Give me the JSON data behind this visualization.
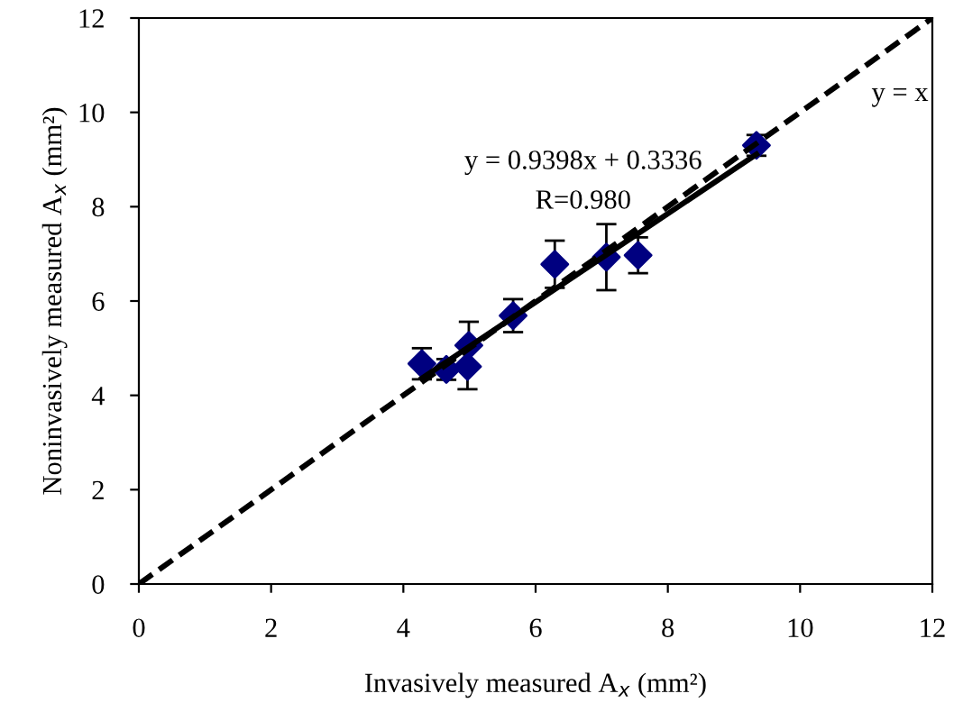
{
  "chart_data": {
    "type": "scatter",
    "xlabel": "Invasively measured A$_{x}$ (mm²)",
    "ylabel": "Noninvasively measured A$_{x}$ (mm²)",
    "xlim": [
      0,
      12
    ],
    "ylim": [
      0,
      12
    ],
    "xticks": [
      0,
      2,
      4,
      6,
      8,
      10,
      12
    ],
    "yticks": [
      0,
      2,
      4,
      6,
      8,
      10,
      12
    ],
    "grid": false,
    "legend": false,
    "series": [
      {
        "color": "#000080",
        "marker": "diamond",
        "x": [
          4.28,
          4.65,
          4.97,
          4.99,
          5.66,
          6.29,
          7.07,
          7.55,
          9.34
        ],
        "values": [
          4.67,
          4.55,
          4.61,
          5.06,
          5.69,
          6.78,
          6.93,
          6.97,
          9.3
        ],
        "errors": [
          0.33,
          0.22,
          0.48,
          0.5,
          0.35,
          0.5,
          0.7,
          0.38,
          0.22
        ]
      },
      {
        "type": "line",
        "color": "#000000",
        "line_style": "solid",
        "marker": "none",
        "x": [
          4.28,
          9.34
        ],
        "values": [
          4.36,
          9.11
        ]
      },
      {
        "type": "line",
        "color": "#000000",
        "line_style": "dashed",
        "marker": "none",
        "x": [
          0,
          12
        ],
        "values": [
          0,
          12
        ]
      }
    ],
    "annotations": [
      "y = 0.9398x + 0.3336",
      "R=0.980",
      "y = x"
    ]
  }
}
